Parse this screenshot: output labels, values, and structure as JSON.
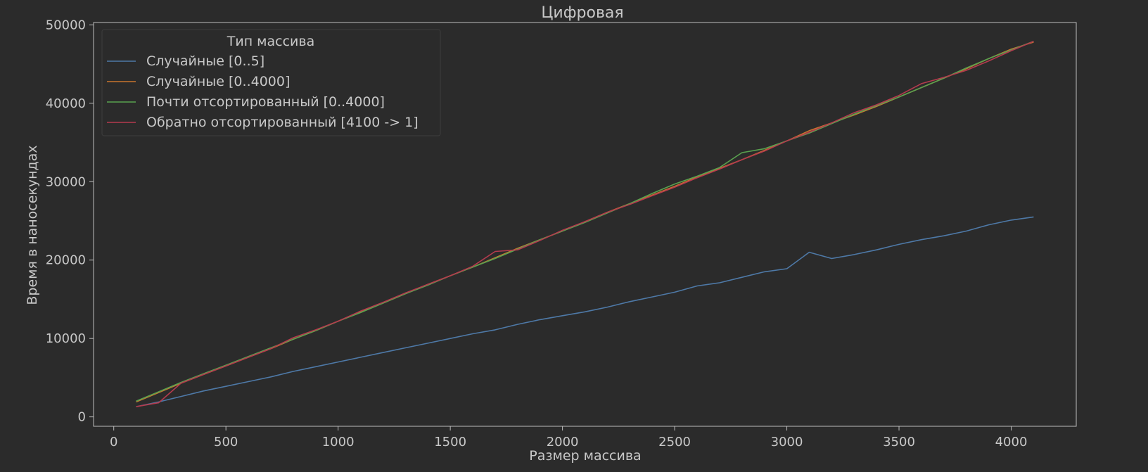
{
  "chart_data": {
    "type": "line",
    "title": "Цифровая",
    "xlabel": "Размер массива",
    "ylabel": "Время в наносекундах",
    "xlim": [
      -90,
      4290
    ],
    "ylim": [
      -1200,
      50300
    ],
    "xticks": [
      0,
      500,
      1000,
      1500,
      2000,
      2500,
      3000,
      3500,
      4000
    ],
    "yticks": [
      0,
      10000,
      20000,
      30000,
      40000,
      50000
    ],
    "grid": false,
    "legend": {
      "title": "Тип массива",
      "placement": "top-left"
    },
    "x": [
      100,
      200,
      300,
      400,
      500,
      600,
      700,
      800,
      900,
      1000,
      1100,
      1200,
      1300,
      1400,
      1500,
      1600,
      1700,
      1800,
      1900,
      2000,
      2100,
      2200,
      2300,
      2400,
      2500,
      2600,
      2700,
      2800,
      2900,
      3000,
      3100,
      3200,
      3300,
      3400,
      3500,
      3600,
      3700,
      3800,
      3900,
      4000,
      4100
    ],
    "series": [
      {
        "name": "Случайные [0..5]",
        "color": "#4e79a7",
        "values": [
          1300,
          1900,
          2600,
          3300,
          3900,
          4500,
          5100,
          5800,
          6400,
          7000,
          7600,
          8200,
          8800,
          9400,
          10000,
          10600,
          11100,
          11800,
          12400,
          12900,
          13400,
          14000,
          14700,
          15300,
          15900,
          16700,
          17100,
          17800,
          18500,
          18900,
          21000,
          20200,
          20700,
          21300,
          22000,
          22600,
          23100,
          23700,
          24500,
          25100,
          25500
        ]
      },
      {
        "name": "Случайные [0..4000]",
        "color": "#c8752e",
        "values": [
          1900,
          3100,
          4300,
          5400,
          6500,
          7600,
          8700,
          9900,
          11000,
          12200,
          13400,
          14500,
          15700,
          16900,
          18000,
          19100,
          20300,
          21500,
          22600,
          23700,
          24900,
          26100,
          27200,
          28300,
          29400,
          30600,
          31700,
          32800,
          34000,
          35200,
          36500,
          37500,
          38500,
          39600,
          40800,
          42000,
          43200,
          44400,
          45700,
          46900,
          47800
        ]
      },
      {
        "name": "Почти отсортированный [0..4000]",
        "color": "#59a14f",
        "values": [
          2000,
          3200,
          4400,
          5500,
          6600,
          7700,
          8800,
          9900,
          11000,
          12200,
          13300,
          14500,
          15700,
          16800,
          18000,
          19100,
          20200,
          21400,
          22600,
          23700,
          24800,
          26000,
          27200,
          28500,
          29700,
          30700,
          31800,
          33700,
          34200,
          35200,
          36200,
          37400,
          38600,
          39700,
          40800,
          42000,
          43200,
          44500,
          45700,
          46800,
          47900
        ]
      },
      {
        "name": "Обратно отсортированный [4100 -> 1]",
        "color": "#b53b4e",
        "values": [
          1300,
          1800,
          4300,
          5400,
          6500,
          7600,
          8700,
          10100,
          11100,
          12200,
          13500,
          14600,
          15800,
          16900,
          18000,
          19200,
          21100,
          21300,
          22500,
          23800,
          24900,
          26100,
          27100,
          28200,
          29300,
          30500,
          31600,
          32800,
          33900,
          35200,
          36300,
          37500,
          38800,
          39800,
          41000,
          42500,
          43300,
          44200,
          45400,
          46700,
          47900
        ]
      }
    ]
  }
}
